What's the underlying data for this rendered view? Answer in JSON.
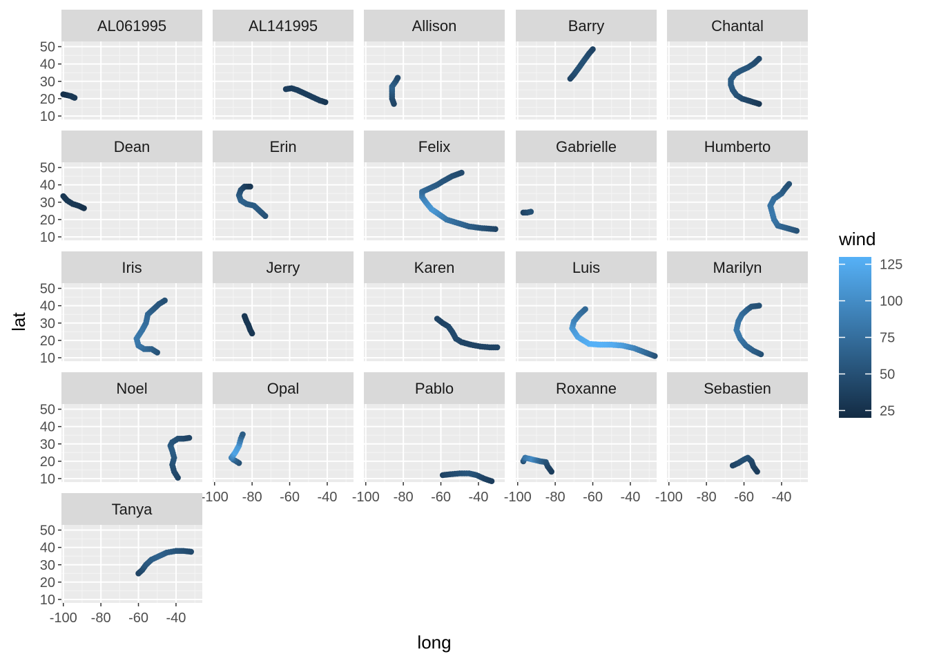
{
  "chart_data": {
    "type": "scatter",
    "facet_by": "name",
    "x_variable": "long",
    "y_variable": "lat",
    "color_variable": "wind",
    "xlabel": "long",
    "ylabel": "lat",
    "xlim": [
      -101,
      -26
    ],
    "ylim": [
      8,
      53
    ],
    "x_ticks": [
      -100,
      -80,
      -60,
      -40
    ],
    "y_ticks": [
      10,
      20,
      30,
      40,
      50
    ],
    "x_tick_labels": [
      "-100",
      "-80",
      "-60",
      "-40"
    ],
    "y_tick_labels": [
      "10",
      "20",
      "30",
      "40",
      "50"
    ],
    "grid": true,
    "legend": {
      "title": "wind",
      "position": "right",
      "type": "colorbar",
      "range": [
        20,
        130
      ],
      "breaks": [
        25,
        50,
        75,
        100,
        125
      ],
      "labels": [
        "25",
        "50",
        "75",
        "100",
        "125"
      ],
      "low_color": "#132B43",
      "high_color": "#56B1F7"
    },
    "colors": {
      "panel_background": "#EBEBEB",
      "strip_background": "#D9D9D9",
      "grid_major": "#FFFFFF"
    },
    "facets": [
      {
        "name": "AL061995",
        "track": [
          [
            -100,
            22.5,
            25
          ],
          [
            -98,
            22,
            25
          ],
          [
            -96,
            21.5,
            30
          ],
          [
            -95,
            21,
            30
          ],
          [
            -94,
            20.5,
            30
          ]
        ]
      },
      {
        "name": "AL141995",
        "track": [
          [
            -62,
            25.5,
            35
          ],
          [
            -59,
            26,
            35
          ],
          [
            -56,
            25,
            35
          ],
          [
            -53,
            23.5,
            35
          ],
          [
            -50,
            22,
            35
          ],
          [
            -47,
            20.5,
            35
          ],
          [
            -44,
            19,
            35
          ],
          [
            -41,
            18,
            30
          ]
        ]
      },
      {
        "name": "Allison",
        "track": [
          [
            -85,
            17,
            40
          ],
          [
            -86,
            20,
            45
          ],
          [
            -86,
            24,
            55
          ],
          [
            -86,
            27,
            65
          ],
          [
            -84,
            30,
            55
          ],
          [
            -83,
            32,
            45
          ]
        ]
      },
      {
        "name": "Barry",
        "track": [
          [
            -72,
            31.5,
            40
          ],
          [
            -70,
            34,
            45
          ],
          [
            -68,
            37,
            50
          ],
          [
            -66,
            40,
            50
          ],
          [
            -64,
            43,
            50
          ],
          [
            -62,
            46,
            45
          ],
          [
            -60,
            48.5,
            40
          ]
        ]
      },
      {
        "name": "Chantal",
        "track": [
          [
            -52,
            17,
            30
          ],
          [
            -55,
            18,
            35
          ],
          [
            -58,
            19,
            40
          ],
          [
            -61,
            20,
            45
          ],
          [
            -64,
            22,
            50
          ],
          [
            -66,
            25,
            55
          ],
          [
            -67,
            28,
            60
          ],
          [
            -67,
            31,
            60
          ],
          [
            -65,
            34,
            60
          ],
          [
            -62,
            36,
            55
          ],
          [
            -58,
            38,
            55
          ],
          [
            -55,
            40,
            50
          ],
          [
            -52,
            43,
            45
          ]
        ]
      },
      {
        "name": "Dean",
        "track": [
          [
            -100,
            33.5,
            30
          ],
          [
            -98,
            31,
            30
          ],
          [
            -95,
            29,
            30
          ],
          [
            -92,
            28,
            30
          ],
          [
            -89,
            26.5,
            25
          ]
        ]
      },
      {
        "name": "Erin",
        "track": [
          [
            -73,
            22,
            50
          ],
          [
            -76,
            25,
            55
          ],
          [
            -79,
            28,
            60
          ],
          [
            -83,
            29,
            60
          ],
          [
            -86,
            31,
            65
          ],
          [
            -87,
            34,
            60
          ],
          [
            -86,
            37,
            50
          ],
          [
            -84,
            39,
            40
          ],
          [
            -81,
            39,
            30
          ]
        ]
      },
      {
        "name": "Felix",
        "track": [
          [
            -31,
            14.5,
            40
          ],
          [
            -38,
            15,
            50
          ],
          [
            -45,
            16,
            60
          ],
          [
            -51,
            18,
            70
          ],
          [
            -57,
            20,
            80
          ],
          [
            -61,
            23,
            95
          ],
          [
            -65,
            26,
            110
          ],
          [
            -68,
            30,
            100
          ],
          [
            -70,
            33,
            90
          ],
          [
            -70,
            36,
            75
          ],
          [
            -66,
            38,
            65
          ],
          [
            -62,
            40,
            60
          ],
          [
            -59,
            42,
            55
          ],
          [
            -54,
            45,
            50
          ],
          [
            -49,
            47,
            45
          ]
        ]
      },
      {
        "name": "Gabrielle",
        "track": [
          [
            -97,
            24,
            40
          ],
          [
            -95,
            24,
            45
          ],
          [
            -93,
            24.5,
            50
          ]
        ]
      },
      {
        "name": "Humberto",
        "track": [
          [
            -32,
            13.5,
            50
          ],
          [
            -37,
            15,
            60
          ],
          [
            -42,
            16.5,
            70
          ],
          [
            -44,
            20,
            80
          ],
          [
            -45,
            24,
            85
          ],
          [
            -46,
            28,
            80
          ],
          [
            -44,
            32,
            75
          ],
          [
            -40,
            35,
            65
          ],
          [
            -38,
            38,
            55
          ],
          [
            -36,
            40.5,
            50
          ]
        ]
      },
      {
        "name": "Iris",
        "track": [
          [
            -50,
            13,
            50
          ],
          [
            -53,
            15,
            60
          ],
          [
            -57,
            15,
            70
          ],
          [
            -60,
            17,
            80
          ],
          [
            -61,
            21,
            85
          ],
          [
            -58,
            26,
            80
          ],
          [
            -56,
            30,
            75
          ],
          [
            -55,
            35,
            70
          ],
          [
            -52,
            38,
            60
          ],
          [
            -49,
            41,
            55
          ],
          [
            -46,
            43,
            50
          ]
        ]
      },
      {
        "name": "Jerry",
        "track": [
          [
            -80,
            24,
            30
          ],
          [
            -81,
            26,
            30
          ],
          [
            -82,
            29,
            30
          ],
          [
            -83,
            31,
            30
          ],
          [
            -84,
            34,
            30
          ]
        ]
      },
      {
        "name": "Karen",
        "track": [
          [
            -30,
            16,
            40
          ],
          [
            -34,
            16,
            40
          ],
          [
            -39,
            16.5,
            40
          ],
          [
            -44,
            17.5,
            40
          ],
          [
            -49,
            19,
            40
          ],
          [
            -52,
            21,
            45
          ],
          [
            -54,
            25,
            45
          ],
          [
            -56,
            28,
            45
          ],
          [
            -59,
            30,
            40
          ],
          [
            -62,
            32.5,
            40
          ]
        ]
      },
      {
        "name": "Luis",
        "track": [
          [
            -27,
            11,
            50
          ],
          [
            -32,
            13,
            70
          ],
          [
            -38,
            15.5,
            90
          ],
          [
            -44,
            17,
            110
          ],
          [
            -50,
            17.5,
            125
          ],
          [
            -56,
            17.5,
            130
          ],
          [
            -62,
            18,
            130
          ],
          [
            -68,
            22,
            120
          ],
          [
            -71,
            27,
            110
          ],
          [
            -70,
            31,
            95
          ],
          [
            -67,
            35,
            80
          ],
          [
            -64,
            38,
            70
          ]
        ]
      },
      {
        "name": "Marilyn",
        "track": [
          [
            -51,
            12,
            50
          ],
          [
            -55,
            14,
            60
          ],
          [
            -59,
            17,
            70
          ],
          [
            -62,
            21,
            80
          ],
          [
            -64,
            26,
            85
          ],
          [
            -63,
            31,
            80
          ],
          [
            -61,
            35,
            75
          ],
          [
            -58,
            38,
            65
          ],
          [
            -56,
            39.5,
            55
          ],
          [
            -52,
            40,
            50
          ]
        ]
      },
      {
        "name": "Noel",
        "track": [
          [
            -39,
            10.5,
            40
          ],
          [
            -41,
            14,
            45
          ],
          [
            -42,
            18,
            50
          ],
          [
            -41,
            22,
            55
          ],
          [
            -42,
            26,
            60
          ],
          [
            -43,
            29,
            60
          ],
          [
            -42,
            31,
            55
          ],
          [
            -39,
            33,
            50
          ],
          [
            -36,
            33,
            45
          ],
          [
            -33,
            33.5,
            40
          ]
        ]
      },
      {
        "name": "Opal",
        "track": [
          [
            -87,
            19,
            50
          ],
          [
            -90,
            21,
            70
          ],
          [
            -91,
            22,
            90
          ],
          [
            -89,
            25,
            120
          ],
          [
            -87,
            29,
            110
          ],
          [
            -86,
            33,
            80
          ],
          [
            -85,
            35.5,
            60
          ]
        ]
      },
      {
        "name": "Pablo",
        "track": [
          [
            -59,
            12,
            40
          ],
          [
            -55,
            12.5,
            45
          ],
          [
            -50,
            13,
            50
          ],
          [
            -45,
            13,
            55
          ],
          [
            -41,
            12,
            50
          ],
          [
            -37,
            10,
            40
          ],
          [
            -33,
            8.5,
            35
          ]
        ]
      },
      {
        "name": "Roxanne",
        "track": [
          [
            -97,
            20,
            50
          ],
          [
            -96,
            22,
            80
          ],
          [
            -92,
            21,
            100
          ],
          [
            -88,
            20,
            70
          ],
          [
            -85,
            19.5,
            55
          ],
          [
            -84,
            17,
            45
          ],
          [
            -82,
            14,
            35
          ]
        ]
      },
      {
        "name": "Sebastien",
        "track": [
          [
            -66,
            17.5,
            40
          ],
          [
            -63,
            19,
            45
          ],
          [
            -60,
            21,
            50
          ],
          [
            -58,
            22,
            50
          ],
          [
            -56,
            20,
            45
          ],
          [
            -55,
            17,
            40
          ],
          [
            -53,
            14,
            35
          ]
        ]
      },
      {
        "name": "Tanya",
        "track": [
          [
            -60,
            25,
            40
          ],
          [
            -58,
            27,
            45
          ],
          [
            -56,
            30,
            55
          ],
          [
            -53,
            33,
            60
          ],
          [
            -49,
            35,
            65
          ],
          [
            -45,
            37,
            60
          ],
          [
            -40,
            38,
            55
          ],
          [
            -36,
            38,
            50
          ],
          [
            -32,
            37.5,
            45
          ]
        ]
      }
    ]
  }
}
